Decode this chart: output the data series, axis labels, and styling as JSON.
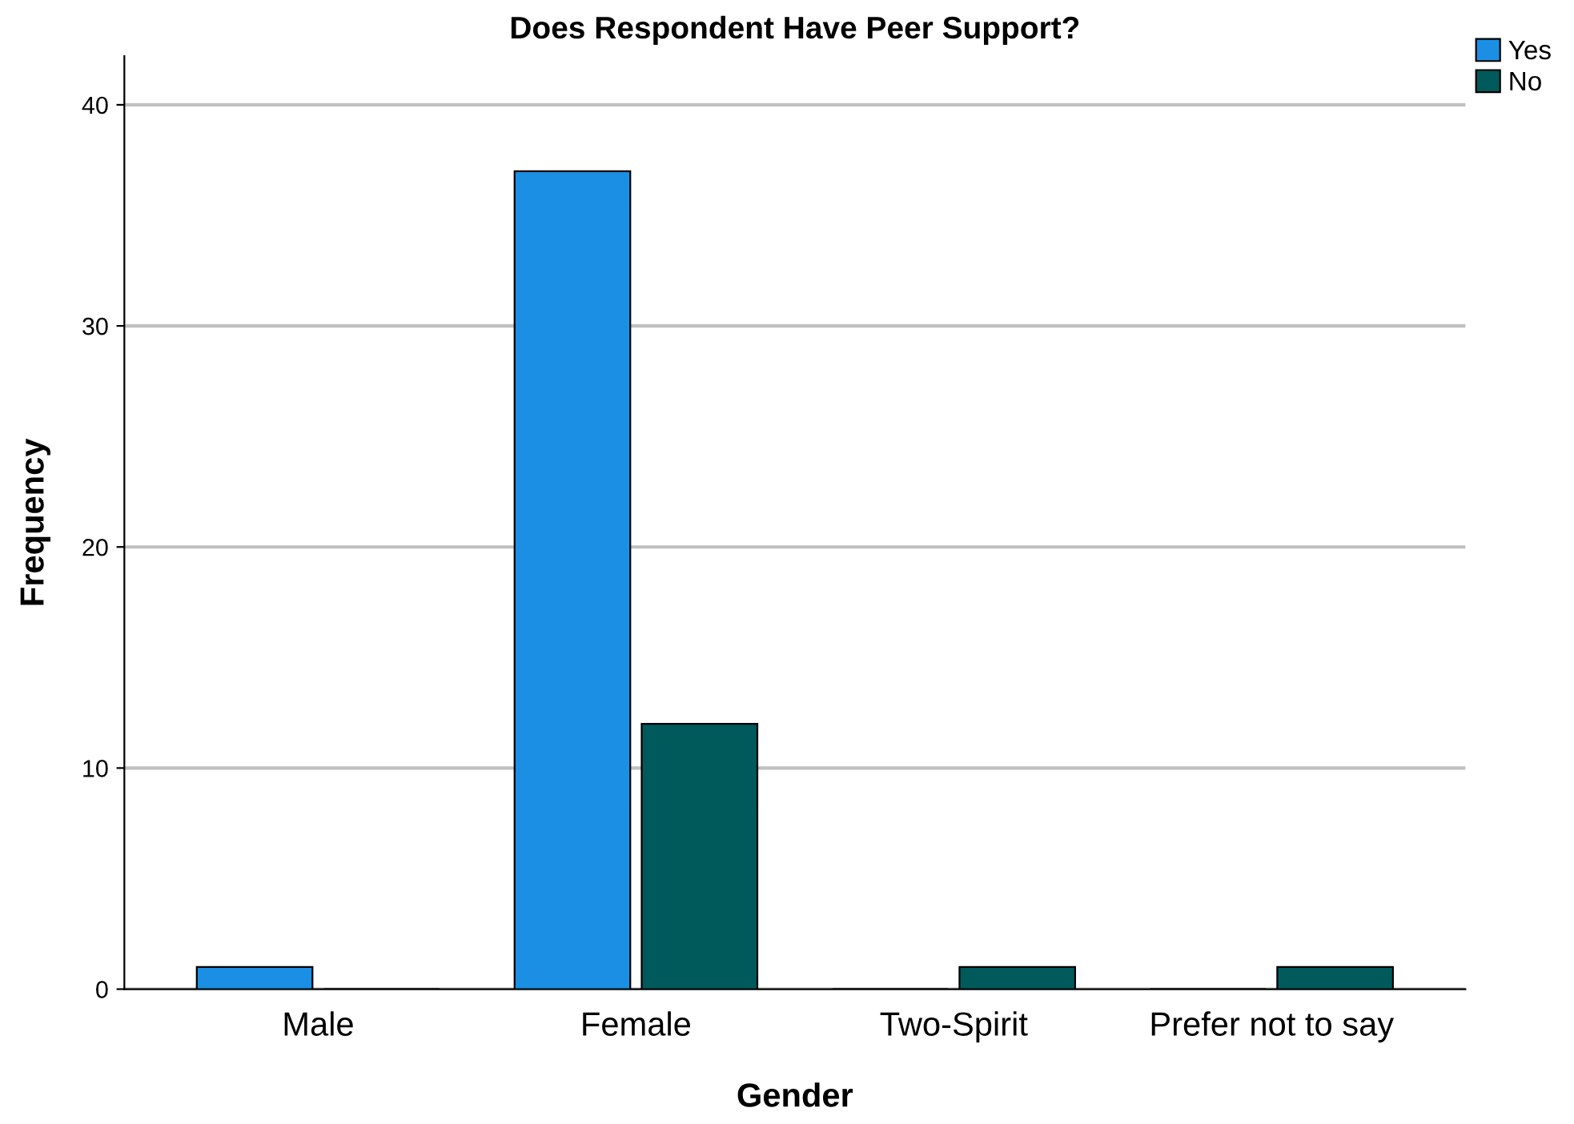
{
  "chart_data": {
    "type": "bar",
    "title": "Does Respondent Have Peer Support?",
    "xlabel": "Gender",
    "ylabel": "Frequency",
    "categories": [
      "Male",
      "Female",
      "Two-Spirit",
      "Prefer not to say"
    ],
    "series": [
      {
        "name": "Yes",
        "color": "#1a8fe3",
        "values": [
          1,
          37,
          0,
          0
        ]
      },
      {
        "name": "No",
        "color": "#005a5b",
        "values": [
          0,
          12,
          1,
          1
        ]
      }
    ],
    "ylim": [
      0,
      42.2
    ],
    "yticks": [
      0,
      10,
      20,
      30,
      40
    ],
    "grid": "y",
    "legend": "top right"
  }
}
